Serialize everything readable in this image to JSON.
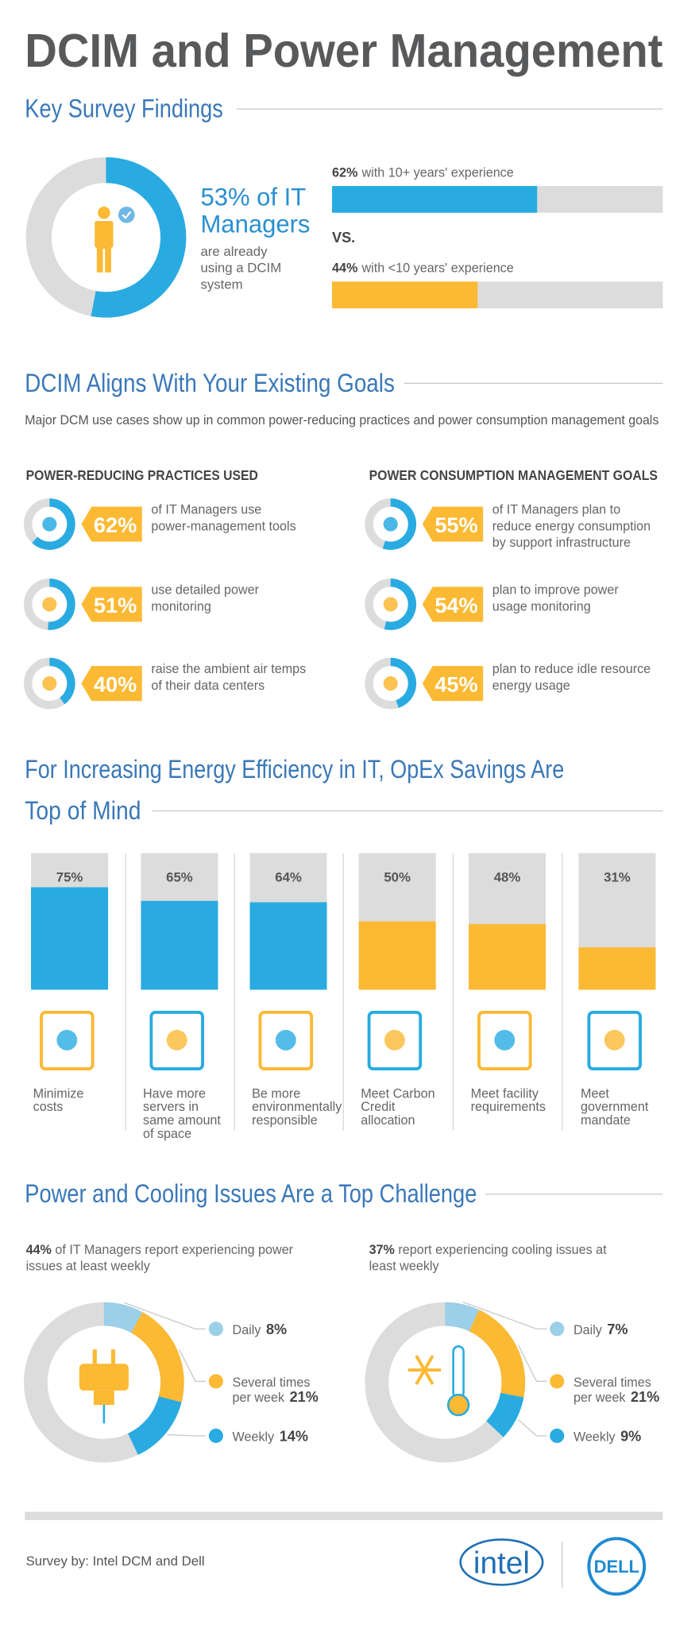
{
  "title": "DCIM and Power Management",
  "key_findings": {
    "heading": "Key Survey Findings",
    "donut": {
      "value": 53,
      "color": "#29abe2",
      "headline": [
        "53% of IT",
        "Managers"
      ],
      "subtext": [
        "are already",
        "using a DCIM",
        "system"
      ]
    },
    "comparison": [
      {
        "value": 62,
        "label": "62%",
        "text": "with 10+ years' experience",
        "color": "#29abe2"
      },
      {
        "value": 44,
        "label": "44%",
        "text": "with <10 years' experience",
        "color": "#fbb934"
      }
    ],
    "versus": "VS."
  },
  "goals": {
    "heading": "DCIM Aligns With Your Existing Goals",
    "subtitle": "Major DCM use cases show up in common power-reducing practices and power consumption management goals",
    "columns": [
      {
        "title": "POWER-REDUCING PRACTICES USED",
        "items": [
          {
            "value": 62,
            "label": "62%",
            "text": [
              "of IT Managers use",
              "power-management tools"
            ]
          },
          {
            "value": 51,
            "label": "51%",
            "text": [
              "use detailed power",
              "monitoring"
            ]
          },
          {
            "value": 40,
            "label": "40%",
            "text": [
              "raise the ambient air temps",
              "of their data centers"
            ]
          }
        ]
      },
      {
        "title": "POWER CONSUMPTION MANAGEMENT GOALS",
        "items": [
          {
            "value": 55,
            "label": "55%",
            "text": [
              "of IT Managers plan to",
              "reduce energy consumption",
              "by support infrastructure"
            ]
          },
          {
            "value": 54,
            "label": "54%",
            "text": [
              "plan to improve power",
              "usage monitoring"
            ]
          },
          {
            "value": 45,
            "label": "45%",
            "text": [
              "plan to reduce idle resource",
              "energy usage"
            ]
          }
        ]
      }
    ]
  },
  "opex": {
    "heading": [
      "For Increasing Energy Efficiency in IT, OpEx Savings Are",
      "Top of Mind"
    ],
    "bars": [
      {
        "value": 75,
        "label": "75%",
        "color": "#29abe2",
        "text": [
          "Minimize",
          "costs"
        ]
      },
      {
        "value": 65,
        "label": "65%",
        "color": "#29abe2",
        "text": [
          "Have more",
          "servers in",
          "same amount",
          "of space"
        ]
      },
      {
        "value": 64,
        "label": "64%",
        "color": "#29abe2",
        "text": [
          "Be more",
          "environmentally",
          "responsible"
        ]
      },
      {
        "value": 50,
        "label": "50%",
        "color": "#fbb934",
        "text": [
          "Meet Carbon",
          "Credit",
          "allocation"
        ]
      },
      {
        "value": 48,
        "label": "48%",
        "color": "#fbb934",
        "text": [
          "Meet facility",
          "requirements"
        ]
      },
      {
        "value": 31,
        "label": "31%",
        "color": "#fbb934",
        "text": [
          "Meet",
          "government",
          "mandate"
        ]
      }
    ]
  },
  "challenges": {
    "heading": "Power and Cooling Issues Are a Top Challenge",
    "panels": [
      {
        "highlight": "44%",
        "intro": [
          " of IT Managers report experiencing power",
          "issues at least weekly"
        ],
        "segments": [
          {
            "name": [
              "Daily"
            ],
            "value": 8,
            "label": "8%",
            "color": "#9ccfe8"
          },
          {
            "name": [
              "Several times",
              "per week"
            ],
            "value": 21,
            "label": "21%",
            "color": "#fbb934"
          },
          {
            "name": [
              "Weekly"
            ],
            "value": 14,
            "label": "14%",
            "color": "#29abe2"
          }
        ]
      },
      {
        "highlight": "37%",
        "intro": [
          " report experiencing cooling issues at",
          " least weekly"
        ],
        "segments": [
          {
            "name": [
              "Daily"
            ],
            "value": 7,
            "label": "7%",
            "color": "#9ccfe8"
          },
          {
            "name": [
              "Several times",
              "per week"
            ],
            "value": 21,
            "label": "21%",
            "color": "#fbb934"
          },
          {
            "name": [
              "Weekly"
            ],
            "value": 9,
            "label": "9%",
            "color": "#29abe2"
          }
        ]
      }
    ]
  },
  "footer": {
    "credit": "Survey by: Intel DCM and Dell",
    "logos": [
      "intel",
      "DELL"
    ]
  }
}
